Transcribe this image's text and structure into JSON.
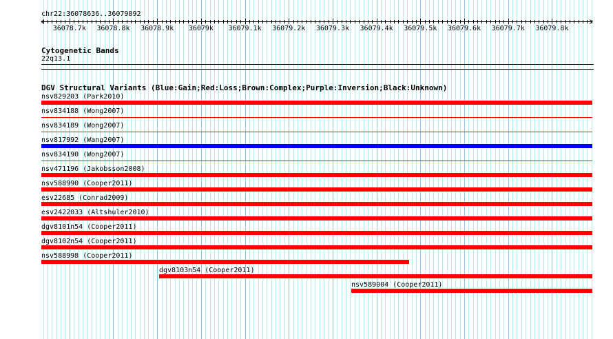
{
  "ruler": {
    "location": "chr22:36078636..36079892",
    "start": 36078636,
    "end": 36079892,
    "ticks": [
      {
        "pos": 36078700,
        "label": "36078.7k"
      },
      {
        "pos": 36078800,
        "label": "36078.8k"
      },
      {
        "pos": 36078900,
        "label": "36078.9k"
      },
      {
        "pos": 36079000,
        "label": "36079k"
      },
      {
        "pos": 36079100,
        "label": "36079.1k"
      },
      {
        "pos": 36079200,
        "label": "36079.2k"
      },
      {
        "pos": 36079300,
        "label": "36079.3k"
      },
      {
        "pos": 36079400,
        "label": "36079.4k"
      },
      {
        "pos": 36079500,
        "label": "36079.5k"
      },
      {
        "pos": 36079600,
        "label": "36079.6k"
      },
      {
        "pos": 36079700,
        "label": "36079.7k"
      },
      {
        "pos": 36079800,
        "label": "36079.8k"
      }
    ]
  },
  "cytoband": {
    "title": "Cytogenetic Bands",
    "band": "22q13.1"
  },
  "dgv": {
    "title": "DGV Structural Variants (Blue:Gain;Red:Loss;Brown:Complex;Purple:Inversion;Black:Unknown)",
    "colors": {
      "gain": "#0000ff",
      "loss": "#ff0000",
      "complex": "#8b4513"
    },
    "features": [
      {
        "label": "nsv829203 (Park2010)",
        "type": "loss",
        "style": "thick",
        "start": 36078636,
        "end": 36079892
      },
      {
        "label": "nsv834188 (Wong2007)",
        "type": "loss",
        "style": "thin",
        "start": 36078636,
        "end": 36079892
      },
      {
        "label": "nsv834189 (Wong2007)",
        "type": "complex",
        "style": "thin",
        "start": 36078636,
        "end": 36079892
      },
      {
        "label": "nsv817992 (Wang2007)",
        "type": "gain",
        "style": "thick",
        "start": 36078636,
        "end": 36079892
      },
      {
        "label": "nsv834190 (Wong2007)",
        "type": "loss",
        "style": "thin",
        "start": 36078636,
        "end": 36079892
      },
      {
        "label": "nsv471196 (Jakobsson2008)",
        "type": "loss",
        "style": "thick",
        "start": 36078636,
        "end": 36079892
      },
      {
        "label": "nsv588990 (Cooper2011)",
        "type": "loss",
        "style": "thick",
        "start": 36078636,
        "end": 36079892
      },
      {
        "label": "esv22685 (Conrad2009)",
        "type": "loss",
        "style": "thick",
        "start": 36078636,
        "end": 36079892
      },
      {
        "label": "esv2422033 (Altshuler2010)",
        "type": "loss",
        "style": "thick",
        "start": 36078636,
        "end": 36079892
      },
      {
        "label": "dgv8101n54 (Cooper2011)",
        "type": "loss",
        "style": "thick",
        "start": 36078636,
        "end": 36079892
      },
      {
        "label": "dgv8102n54 (Cooper2011)",
        "type": "loss",
        "style": "thick",
        "start": 36078636,
        "end": 36079892
      },
      {
        "label": "nsv588998 (Cooper2011)",
        "type": "loss",
        "style": "thick",
        "start": 36078636,
        "end": 36079474
      },
      {
        "label": "dgv8103n54 (Cooper2011)",
        "type": "loss",
        "style": "thick",
        "start": 36078904,
        "end": 36079892
      },
      {
        "label": "nsv589004 (Cooper2011)",
        "type": "loss",
        "style": "thick",
        "start": 36079342,
        "end": 36079892
      }
    ]
  }
}
